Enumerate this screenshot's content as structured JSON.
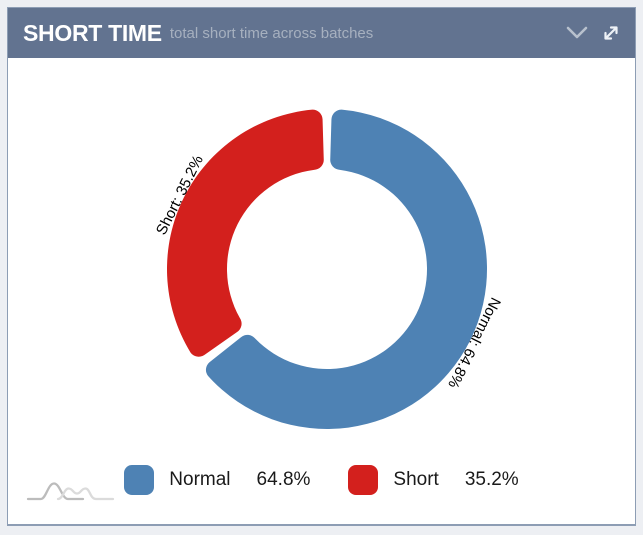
{
  "header": {
    "title": "SHORT TIME",
    "subtitle": "total short time across batches",
    "collapse_icon": "chevron-down-icon",
    "expand_icon": "expand-arrows-icon"
  },
  "chart_data": {
    "type": "pie",
    "variant": "donut",
    "unit": "%",
    "start_angle": -90,
    "direction": "clockwise",
    "slices": [
      {
        "label": "Normal",
        "value": 64.8,
        "color": "#4e82b4",
        "callout": "Normal: 64.8%"
      },
      {
        "label": "Short",
        "value": 35.2,
        "color": "#d3201d",
        "callout": "Short: 35.2%"
      }
    ],
    "legend": {
      "position": "bottom",
      "items": [
        {
          "label": "Normal",
          "value": "64.8%",
          "color": "#4e82b4"
        },
        {
          "label": "Short",
          "value": "35.2%",
          "color": "#d3201d"
        }
      ]
    },
    "branding": "amcharts-logo"
  },
  "colors": {
    "header_bg": "#627390",
    "title": "#ffffff",
    "subtitle": "#a6b0bf",
    "panel_border": "#8d9db4",
    "page_bg": "#edeff3",
    "callout_text": "#000000"
  }
}
